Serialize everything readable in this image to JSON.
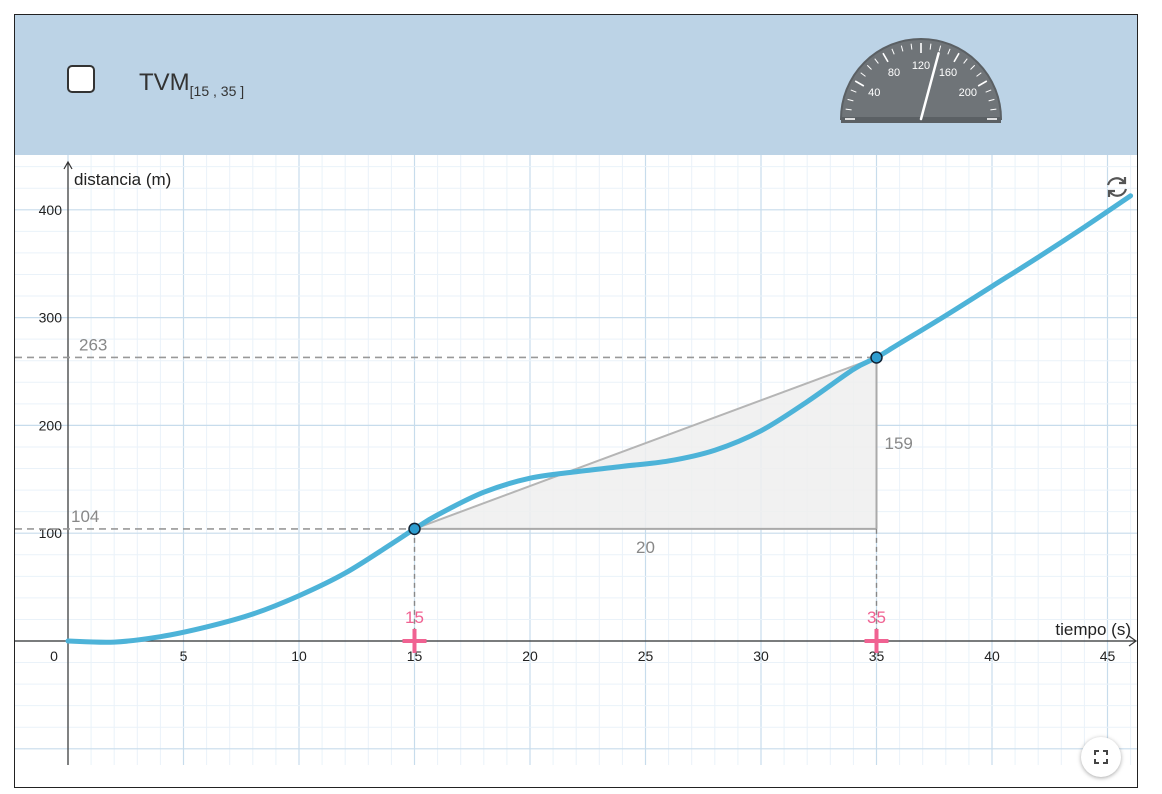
{
  "header": {
    "tvm_main": "TVM",
    "tvm_subscript": "[15 , 35 ]",
    "checkbox_checked": false
  },
  "speedometer": {
    "labels": [
      "40",
      "80",
      "120",
      "160",
      "200"
    ],
    "needle_value": 140,
    "colors": {
      "dial": "#6f7478",
      "ticks": "#ffffff"
    }
  },
  "icons": {
    "refresh": "refresh-icon",
    "fullscreen": "fullscreen-icon",
    "checkbox": "checkbox"
  },
  "chart_data": {
    "type": "line",
    "xlabel": "tiempo (s)",
    "ylabel": "distancia (m)",
    "xlim": [
      0,
      46
    ],
    "ylim": [
      0,
      440
    ],
    "x_ticks": [
      0,
      5,
      10,
      15,
      20,
      25,
      30,
      35,
      40,
      45
    ],
    "y_ticks": [
      100,
      200,
      300,
      400
    ],
    "grid": true,
    "series": [
      {
        "color": "#4db3d8",
        "x": [
          0,
          2,
          4,
          6,
          8,
          10,
          12,
          14,
          15,
          16,
          18,
          20,
          22,
          24,
          26,
          28,
          30,
          32,
          34,
          35,
          36,
          38,
          40,
          42,
          44,
          46
        ],
        "y": [
          0,
          -1,
          4,
          13,
          25,
          42,
          63,
          90,
          104,
          117,
          138,
          151,
          157,
          162,
          167,
          177,
          195,
          222,
          252,
          263,
          276,
          302,
          329,
          356,
          384,
          413
        ]
      }
    ],
    "points": [
      {
        "x": 15,
        "y": 104
      },
      {
        "x": 35,
        "y": 263
      }
    ],
    "sliders": [
      {
        "value": 15,
        "label": "15",
        "color": "#f06292"
      },
      {
        "value": 35,
        "label": "35",
        "color": "#f06292"
      }
    ],
    "annotations": {
      "y1_label": "104",
      "y2_label": "263",
      "dx_label": "20",
      "dy_label": "159"
    }
  }
}
